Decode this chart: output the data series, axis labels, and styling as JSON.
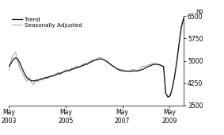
{
  "ylabel": "no.",
  "ylim": [
    3500,
    6500
  ],
  "yticks": [
    3500,
    4250,
    5000,
    5750,
    6500
  ],
  "xtick_labels": [
    "May\n2003",
    "May\n2005",
    "May\n2007",
    "May\n2009"
  ],
  "xtick_positions": [
    0,
    24,
    48,
    68
  ],
  "xlim": [
    0,
    74
  ],
  "trend_color": "#111111",
  "seasonal_color": "#aaaaaa",
  "legend_entries": [
    "Trend",
    "Seasonally Adjusted"
  ],
  "background_color": "#ffffff",
  "trend_data": [
    4820,
    4920,
    5050,
    5100,
    5050,
    4900,
    4720,
    4560,
    4430,
    4370,
    4330,
    4320,
    4330,
    4350,
    4370,
    4400,
    4420,
    4440,
    4460,
    4480,
    4500,
    4530,
    4560,
    4580,
    4610,
    4640,
    4660,
    4680,
    4710,
    4740,
    4760,
    4790,
    4810,
    4840,
    4870,
    4900,
    4940,
    4970,
    5010,
    5030,
    5050,
    5060,
    5050,
    5010,
    4960,
    4900,
    4840,
    4790,
    4740,
    4700,
    4670,
    4660,
    4650,
    4650,
    4650,
    4650,
    4660,
    4660,
    4670,
    4690,
    4720,
    4760,
    4800,
    4830,
    4860,
    4880,
    4880,
    4870,
    4840,
    4800,
    3900,
    3780,
    3820,
    4100,
    4500,
    5000,
    5600,
    6150,
    6420
  ],
  "seasonal_data": [
    4680,
    5050,
    5200,
    5280,
    4950,
    4720,
    4580,
    4430,
    4310,
    4430,
    4270,
    4200,
    4380,
    4290,
    4410,
    4340,
    4450,
    4390,
    4460,
    4510,
    4490,
    4560,
    4610,
    4540,
    4620,
    4660,
    4710,
    4640,
    4760,
    4700,
    4820,
    4760,
    4820,
    4870,
    4920,
    4860,
    4980,
    5020,
    5010,
    5060,
    5110,
    5100,
    5040,
    5000,
    4950,
    4890,
    4840,
    4800,
    4750,
    4700,
    4710,
    4700,
    4640,
    4660,
    4640,
    4710,
    4700,
    4640,
    4710,
    4770,
    4820,
    4810,
    4870,
    4860,
    4920,
    4910,
    4890,
    4850,
    4840,
    4810,
    3910,
    3760,
    3870,
    4080,
    4520,
    5050,
    5650,
    6200,
    6480
  ]
}
